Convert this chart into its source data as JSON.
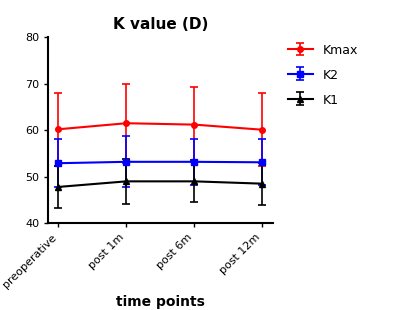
{
  "title": "K value (D)",
  "xlabel": "time points",
  "x_labels": [
    "preoperative",
    "post 1m",
    "post 6m",
    "post 12m"
  ],
  "ylim": [
    40,
    80
  ],
  "yticks": [
    40,
    50,
    60,
    70,
    80
  ],
  "series": [
    {
      "name": "Kmax",
      "color": "#ff0000",
      "marker": "o",
      "values": [
        60.2,
        61.5,
        61.2,
        60.1
      ],
      "yerr_upper": [
        7.8,
        8.5,
        8.0,
        7.9
      ],
      "yerr_lower": [
        7.8,
        8.5,
        8.0,
        7.9
      ]
    },
    {
      "name": "K2",
      "color": "#0000ff",
      "marker": "s",
      "values": [
        52.9,
        53.2,
        53.2,
        53.1
      ],
      "yerr_upper": [
        5.2,
        5.5,
        5.0,
        4.9
      ],
      "yerr_lower": [
        5.2,
        5.5,
        5.0,
        4.9
      ]
    },
    {
      "name": "K1",
      "color": "#000000",
      "marker": "^",
      "values": [
        47.8,
        49.0,
        49.0,
        48.5
      ],
      "yerr_upper": [
        4.5,
        4.8,
        4.5,
        4.5
      ],
      "yerr_lower": [
        4.5,
        4.8,
        4.5,
        4.5
      ]
    }
  ],
  "background_color": "#ffffff",
  "title_fontsize": 11,
  "label_fontsize": 10,
  "tick_fontsize": 8,
  "legend_fontsize": 9
}
